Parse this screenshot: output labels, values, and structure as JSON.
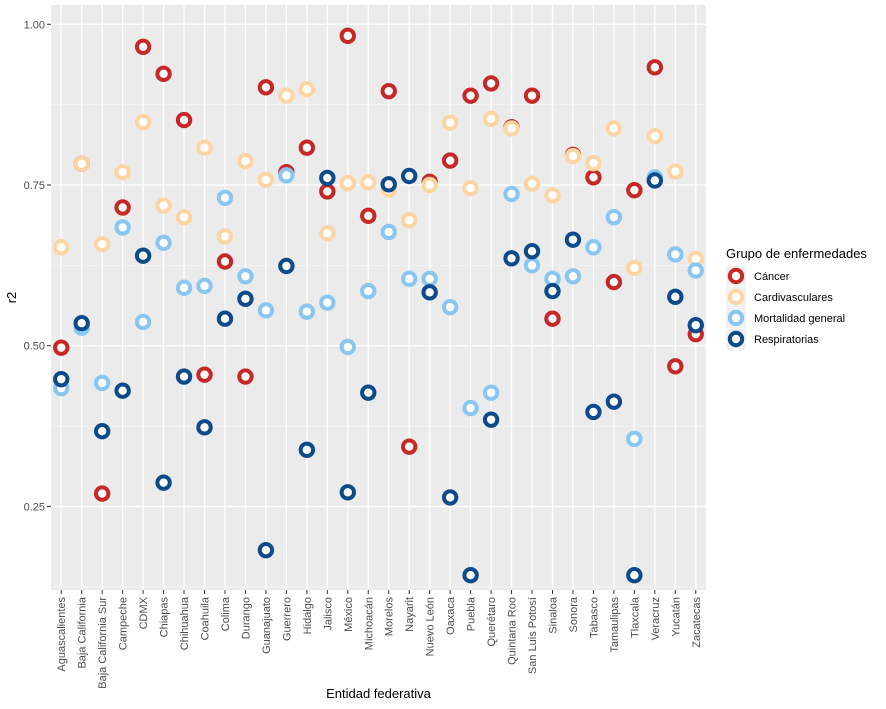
{
  "chart_data": {
    "type": "scatter",
    "xlabel": "Entidad federativa",
    "ylabel": "r2",
    "ylim": [
      0.12,
      1.03
    ],
    "yticks": [
      "0.25",
      "0.50",
      "0.75",
      "1.00"
    ],
    "grid": true,
    "legend_placement": "right",
    "legend_title": "Grupo de enfermedades",
    "categories": [
      "Aguascalientes",
      "Baja California",
      "Baja California Sur",
      "Campeche",
      "CDMX",
      "Chiapas",
      "Chihuahua",
      "Coahuila",
      "Colima",
      "Durango",
      "Guanajuato",
      "Guerrero",
      "Hidalgo",
      "Jalisco",
      "México",
      "Michoacán",
      "Morelos",
      "Nayarit",
      "Nuevo León",
      "Oaxaca",
      "Puebla",
      "Querétaro",
      "Quintana Roo",
      "San Luis Potosí",
      "Sinaloa",
      "Sonora",
      "Tabasco",
      "Tamaulipas",
      "Tlaxcala",
      "Veracruz",
      "Yucatán",
      "Zacatecas"
    ],
    "series": [
      {
        "name": "Cáncer",
        "color": "#c62828",
        "values": [
          0.497,
          0.783,
          0.27,
          0.715,
          0.965,
          0.923,
          0.851,
          0.455,
          0.631,
          0.452,
          0.902,
          0.77,
          0.808,
          0.74,
          0.982,
          0.702,
          0.896,
          0.343,
          0.755,
          0.788,
          0.889,
          0.908,
          0.84,
          0.889,
          0.542,
          0.797,
          0.762,
          0.599,
          0.742,
          0.933,
          0.468,
          0.518
        ]
      },
      {
        "name": "Cardivasculares",
        "color": "#fdd5a2",
        "values": [
          0.653,
          0.783,
          0.658,
          0.77,
          0.848,
          0.718,
          0.7,
          0.808,
          0.67,
          0.787,
          0.758,
          0.889,
          0.899,
          0.675,
          0.753,
          0.754,
          0.743,
          0.695,
          0.75,
          0.847,
          0.745,
          0.853,
          0.838,
          0.752,
          0.734,
          0.795,
          0.784,
          0.838,
          0.621,
          0.826,
          0.771,
          0.635
        ]
      },
      {
        "name": "Mortalidad general",
        "color": "#89c6f2",
        "values": [
          0.434,
          0.528,
          0.442,
          0.684,
          0.537,
          0.66,
          0.59,
          0.593,
          0.73,
          0.608,
          0.555,
          0.765,
          0.553,
          0.567,
          0.498,
          0.585,
          0.677,
          0.604,
          0.604,
          0.56,
          0.403,
          0.427,
          0.736,
          0.625,
          0.604,
          0.608,
          0.653,
          0.7,
          0.355,
          0.762,
          0.642,
          0.617
        ]
      },
      {
        "name": "Respiratorias",
        "color": "#0d4a8a",
        "values": [
          0.448,
          0.535,
          0.367,
          0.43,
          0.64,
          0.287,
          0.452,
          0.373,
          0.542,
          0.573,
          0.182,
          0.624,
          0.338,
          0.761,
          0.272,
          0.427,
          0.751,
          0.764,
          0.583,
          0.264,
          0.143,
          0.385,
          0.636,
          0.647,
          0.585,
          0.665,
          0.397,
          0.413,
          0.143,
          0.757,
          0.576,
          0.532
        ]
      }
    ]
  }
}
